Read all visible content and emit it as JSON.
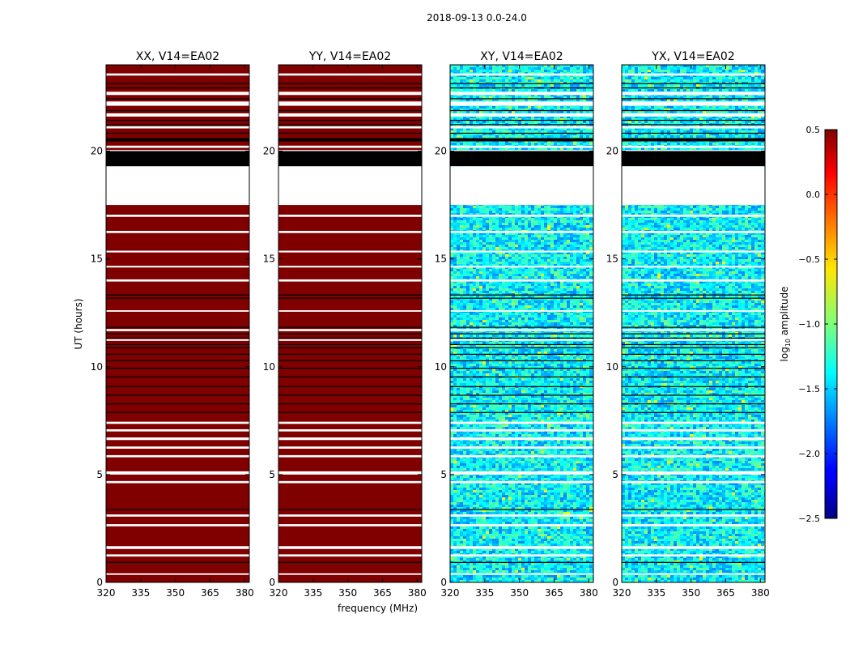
{
  "figure": {
    "suptitle": "2018-09-13 0.0-24.0",
    "xlabel": "frequency (MHz)",
    "ylabel": "UT (hours)"
  },
  "colorbar": {
    "label_main": "log",
    "label_sub": "10",
    "label_tail": " amplitude",
    "range": [
      -2.5,
      0.5
    ],
    "ticks": [
      0.5,
      0.0,
      -0.5,
      -1.0,
      -1.5,
      -2.0,
      -2.5
    ],
    "tick_labels": [
      "0.5",
      "0.0",
      "−0.5",
      "−1.0",
      "−1.5",
      "−2.0",
      "−2.5"
    ],
    "colormap": "jet"
  },
  "chart_data": [
    {
      "type": "heatmap",
      "title": "XX, V14=EA02",
      "xlabel": "",
      "ylabel": "UT (hours)",
      "xlim": [
        320,
        382
      ],
      "ylim": [
        0,
        24
      ],
      "x_ticks": [
        320,
        335,
        350,
        365,
        380
      ],
      "y_ticks": [
        0,
        5,
        10,
        15,
        20
      ],
      "fill": "saturated",
      "base_color": "#800000"
    },
    {
      "type": "heatmap",
      "title": "YY, V14=EA02",
      "xlabel": "frequency (MHz)",
      "ylabel": "",
      "xlim": [
        320,
        382
      ],
      "ylim": [
        0,
        24
      ],
      "x_ticks": [
        320,
        335,
        350,
        365,
        380
      ],
      "y_ticks": [
        0,
        5,
        10,
        15,
        20
      ],
      "fill": "saturated",
      "base_color": "#800000"
    },
    {
      "type": "heatmap",
      "title": "XY, V14=EA02",
      "xlabel": "",
      "ylabel": "",
      "xlim": [
        320,
        382
      ],
      "ylim": [
        0,
        24
      ],
      "x_ticks": [
        320,
        335,
        350,
        365,
        380
      ],
      "y_ticks": [
        0,
        5,
        10,
        15,
        20
      ],
      "fill": "noise",
      "typical_log10_amplitude": -1.4
    },
    {
      "type": "heatmap",
      "title": "YX, V14=EA02",
      "xlabel": "",
      "ylabel": "",
      "xlim": [
        320,
        382
      ],
      "ylim": [
        0,
        24
      ],
      "x_ticks": [
        320,
        335,
        350,
        365,
        380
      ],
      "y_ticks": [
        0,
        5,
        10,
        15,
        20
      ],
      "fill": "noise",
      "typical_log10_amplitude": -1.4
    }
  ],
  "flagged": {
    "blank_bands_hours": [
      [
        17.5,
        19.3
      ],
      [
        22.6,
        22.75
      ],
      [
        22.1,
        22.3
      ],
      [
        21.6,
        21.75
      ],
      [
        21.05,
        21.15
      ],
      [
        20.5,
        20.6
      ],
      [
        20.15,
        20.25
      ],
      [
        20.0,
        20.05
      ],
      [
        16.95,
        17.05
      ],
      [
        16.2,
        16.3
      ],
      [
        15.3,
        15.38
      ],
      [
        14.6,
        14.68
      ],
      [
        13.95,
        14.05
      ],
      [
        12.55,
        12.62
      ],
      [
        11.65,
        11.75
      ],
      [
        11.2,
        11.28
      ],
      [
        7.35,
        7.45
      ],
      [
        7.0,
        7.1
      ],
      [
        6.6,
        6.72
      ],
      [
        6.2,
        6.3
      ],
      [
        5.8,
        5.9
      ],
      [
        5.0,
        5.15
      ],
      [
        4.6,
        4.7
      ],
      [
        3.05,
        3.15
      ],
      [
        2.6,
        2.7
      ],
      [
        1.55,
        1.68
      ],
      [
        1.2,
        1.3
      ],
      [
        0.35,
        0.42
      ],
      [
        23.5,
        23.6
      ]
    ],
    "black_lines_hours": [
      0.95,
      3.4,
      7.9,
      8.3,
      8.7,
      9.1,
      9.55,
      9.95,
      10.3,
      10.6,
      10.9,
      11.05,
      11.35,
      11.55,
      11.85,
      13.2,
      13.35,
      20.85,
      21.25,
      21.45,
      21.9,
      22.45,
      22.95,
      23.15
    ]
  }
}
